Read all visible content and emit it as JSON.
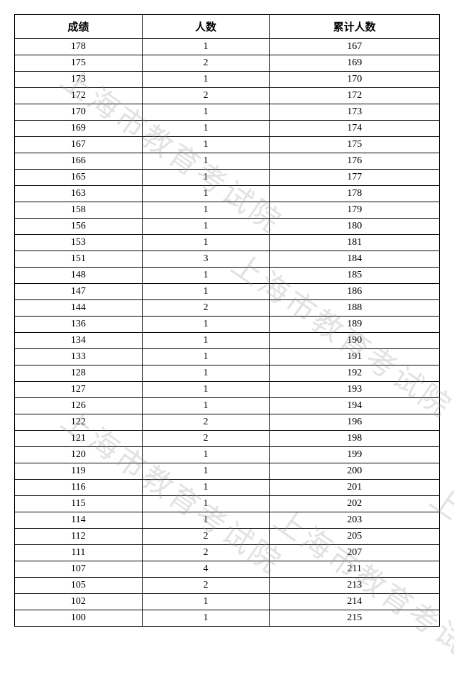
{
  "table": {
    "columns": [
      "成绩",
      "人数",
      "累计人数"
    ],
    "rows": [
      [
        178,
        1,
        167
      ],
      [
        175,
        2,
        169
      ],
      [
        173,
        1,
        170
      ],
      [
        172,
        2,
        172
      ],
      [
        170,
        1,
        173
      ],
      [
        169,
        1,
        174
      ],
      [
        167,
        1,
        175
      ],
      [
        166,
        1,
        176
      ],
      [
        165,
        1,
        177
      ],
      [
        163,
        1,
        178
      ],
      [
        158,
        1,
        179
      ],
      [
        156,
        1,
        180
      ],
      [
        153,
        1,
        181
      ],
      [
        151,
        3,
        184
      ],
      [
        148,
        1,
        185
      ],
      [
        147,
        1,
        186
      ],
      [
        144,
        2,
        188
      ],
      [
        136,
        1,
        189
      ],
      [
        134,
        1,
        190
      ],
      [
        133,
        1,
        191
      ],
      [
        128,
        1,
        192
      ],
      [
        127,
        1,
        193
      ],
      [
        126,
        1,
        194
      ],
      [
        122,
        2,
        196
      ],
      [
        121,
        2,
        198
      ],
      [
        120,
        1,
        199
      ],
      [
        119,
        1,
        200
      ],
      [
        116,
        1,
        201
      ],
      [
        115,
        1,
        202
      ],
      [
        114,
        1,
        203
      ],
      [
        112,
        2,
        205
      ],
      [
        111,
        2,
        207
      ],
      [
        107,
        4,
        211
      ],
      [
        105,
        2,
        213
      ],
      [
        102,
        1,
        214
      ],
      [
        100,
        1,
        215
      ]
    ],
    "border_color": "#000000",
    "background_color": "#ffffff",
    "header_fontsize": 15,
    "cell_fontsize": 14,
    "col_widths_pct": [
      30,
      30,
      40
    ]
  },
  "watermark": {
    "text": "上海市教育考试院",
    "color_rgba": "rgba(150,150,150,0.28)",
    "fontsize": 42,
    "rotate_deg": 35
  }
}
